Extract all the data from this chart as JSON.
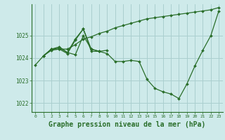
{
  "background_color": "#ceeaea",
  "grid_color": "#aacfcf",
  "line_color": "#2a6e2a",
  "marker_color": "#2a6e2a",
  "xlabel": "Graphe pression niveau de la mer (hPa)",
  "xlabel_fontsize": 7.0,
  "ylim": [
    1021.6,
    1026.4
  ],
  "xlim": [
    -0.5,
    23.5
  ],
  "yticks": [
    1022,
    1023,
    1024,
    1025
  ],
  "xticks": [
    0,
    1,
    2,
    3,
    4,
    5,
    6,
    7,
    8,
    9,
    10,
    11,
    12,
    13,
    14,
    15,
    16,
    17,
    18,
    19,
    20,
    21,
    22,
    23
  ],
  "lines": [
    {
      "x": [
        0,
        1,
        2,
        3,
        4,
        5,
        6,
        7,
        8,
        9,
        10,
        11,
        12,
        13,
        14,
        15,
        16,
        17,
        18,
        19,
        20,
        21,
        22,
        23
      ],
      "y": [
        1023.7,
        1024.1,
        1024.4,
        1024.4,
        1024.2,
        1024.8,
        1025.3,
        1024.3,
        1024.3,
        1024.2,
        1023.85,
        1023.85,
        1023.9,
        1023.85,
        1023.05,
        1022.65,
        1022.5,
        1022.4,
        1022.2,
        1022.85,
        1023.65,
        1024.35,
        1025.0,
        1026.1
      ]
    },
    {
      "x": [
        1,
        2,
        3,
        4,
        5,
        6,
        7,
        8,
        9,
        10,
        11,
        12,
        13,
        14,
        15,
        16,
        17,
        18,
        19,
        20,
        21,
        22,
        23
      ],
      "y": [
        1024.1,
        1024.35,
        1024.4,
        1024.4,
        1024.6,
        1024.85,
        1024.95,
        1025.1,
        1025.2,
        1025.35,
        1025.45,
        1025.55,
        1025.65,
        1025.75,
        1025.8,
        1025.85,
        1025.9,
        1025.95,
        1026.0,
        1026.05,
        1026.1,
        1026.15,
        1026.25
      ]
    },
    {
      "x": [
        1,
        2,
        3,
        4,
        5,
        6,
        7,
        8
      ],
      "y": [
        1024.1,
        1024.4,
        1024.5,
        1024.25,
        1024.85,
        1025.3,
        1024.4,
        1024.3
      ]
    },
    {
      "x": [
        1,
        2,
        3,
        4,
        5,
        6,
        7,
        8,
        9
      ],
      "y": [
        1024.1,
        1024.4,
        1024.45,
        1024.25,
        1024.15,
        1025.0,
        1024.4,
        1024.3,
        1024.35
      ]
    }
  ]
}
